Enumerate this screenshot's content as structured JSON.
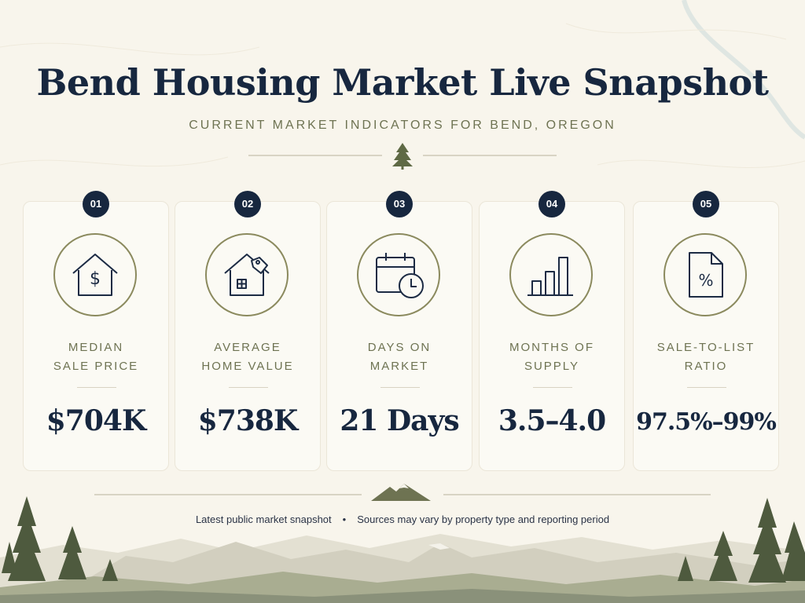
{
  "title": "Bend Housing Market Live Snapshot",
  "subtitle": "CURRENT MARKET INDICATORS FOR BEND, OREGON",
  "colors": {
    "navy": "#17273f",
    "olive": "#6e7352",
    "ring": "#8b8a5e",
    "background": "#f8f5ec"
  },
  "cards": [
    {
      "number": "01",
      "label_line1": "MEDIAN",
      "label_line2": "SALE PRICE",
      "value": "$704K",
      "icon": "house-dollar-icon"
    },
    {
      "number": "02",
      "label_line1": "AVERAGE",
      "label_line2": "HOME VALUE",
      "value": "$738K",
      "icon": "house-tag-icon"
    },
    {
      "number": "03",
      "label_line1": "DAYS ON",
      "label_line2": "MARKET",
      "value": "21 Days",
      "icon": "calendar-clock-icon"
    },
    {
      "number": "04",
      "label_line1": "MONTHS OF",
      "label_line2": "SUPPLY",
      "value": "3.5–4.0",
      "icon": "bar-chart-icon"
    },
    {
      "number": "05",
      "label_line1": "SALE-TO-LIST",
      "label_line2": "RATIO",
      "value": "97.5%–99%",
      "icon": "percent-document-icon"
    }
  ],
  "footer": {
    "left": "Latest public market snapshot",
    "separator": "•",
    "right": "Sources may vary by property type and reporting period"
  }
}
